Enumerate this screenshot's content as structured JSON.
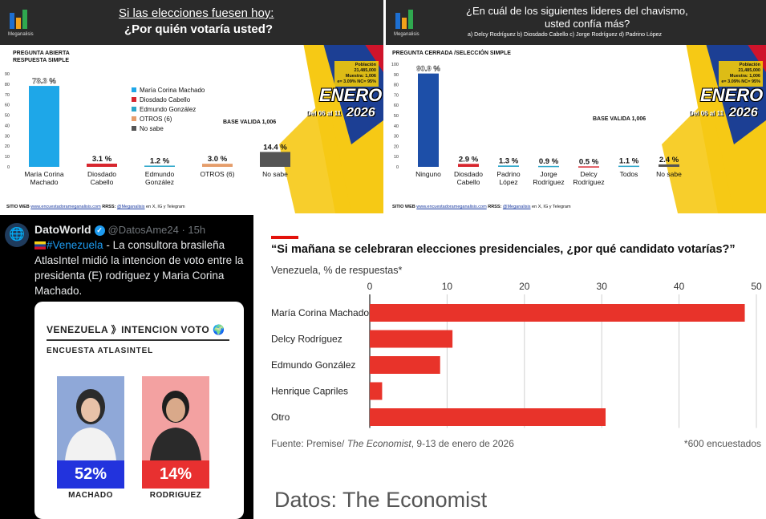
{
  "panel_a": {
    "logo_text": "Meganalisis",
    "title_line1": "Si las elecciones fuesen hoy:",
    "title_line2": "¿Por quién votaría usted?",
    "qtype_line1": "PREGUNTA ABIERTA",
    "qtype_line2": "RESPUESTA SIMPLE",
    "base_text": "BASE VALIDA 1,006",
    "info_lines": [
      "Población",
      "21,485,000",
      "Muestra: 1,006",
      "e= 3.09%  NC= 95%"
    ],
    "enero": "ENERO",
    "range": "Del 06 al 11",
    "year": "2026",
    "footer_site_label": "SITIO WEB",
    "footer_site": "www.encuestadorameganalisis.com",
    "footer_rrss_label": "RRSS:",
    "footer_rrss": "@Meganalisis",
    "footer_rrss_tail": "en X, IG y Telegram"
  },
  "panel_b": {
    "logo_text": "Meganalisis",
    "title_line1": "¿En cuál de los siguientes lideres del chavismo,",
    "title_line2": "usted confía más?",
    "title_sub": "a) Delcy Rodríguez  b) Diosdado Cabello c) Jorge Rodríguez d) Padrino López",
    "qtype_line1": "PREGUNTA CERRADA /SELECCIÓN SIMPLE",
    "base_text": "BASE VALIDA 1,006",
    "info_lines": [
      "Población",
      "21,485,000",
      "Muestra: 1,006",
      "e= 3.09%  NC= 95%"
    ],
    "enero": "ENERO",
    "range": "Del 06 al 11",
    "year": "2026",
    "footer_site_label": "SITIO WEB",
    "footer_site": "www.encuestadorameganalisis.com",
    "footer_rrss_label": "RRSS:",
    "footer_rrss": "@Meganalisis",
    "footer_rrss_tail": "en X, IG y Telegram"
  },
  "tweet": {
    "name": "DatoWorld",
    "verified_glyph": "✓",
    "handle": "@DatosAme24 · 15h",
    "hashtag": "#Venezuela",
    "body": " - La consultora brasileña AtlasIntel midió la intencion de voto entre la presidenta (E) rodriguez y Maria Corina Machado.",
    "card": {
      "title": "VENEZUELA 》INTENCION VOTO 🌍",
      "subtitle": "ENCUESTA ATLASINTEL",
      "candidates": [
        {
          "pct": "52%",
          "name": "MACHADO"
        },
        {
          "pct": "14%",
          "name": "RODRIGUEZ"
        }
      ]
    }
  },
  "economist": {
    "title": "“Si mañana se celebraran elecciones presidenciales, ¿por qué candidato votarías?”",
    "subtitle": "Venezuela, % de respuestas*",
    "source_prefix": "Fuente: Premise/ ",
    "source_pub": "The Economist",
    "source_suffix": ", 9-13 de enero de 2026",
    "note": "*600 encuestados",
    "credit": "Datos: The Economist"
  },
  "chart_data": [
    {
      "type": "bar",
      "categories": [
        "María Corina\nMachado",
        "Diosdado\nCabello",
        "Edmundo\nGonzález",
        "OTROS (6)",
        "No sabe"
      ],
      "values": [
        78.3,
        3.1,
        1.2,
        3.0,
        14.4
      ],
      "data_labels": [
        "78.3 %",
        "3.1 %",
        "1.2 %",
        "3.0 %",
        "14.4 %"
      ],
      "colors": [
        "#1ea7e8",
        "#d7262e",
        "#2ba5c9",
        "#e59d6b",
        "#555555"
      ],
      "legend": [
        "María Corina Machado",
        "Diosdado Cabello",
        "Edmundo González",
        "OTROS (6)",
        "No sabe"
      ],
      "ylim": [
        0,
        90
      ],
      "yticks": [
        0,
        10,
        20,
        30,
        40,
        50,
        60,
        70,
        80,
        90
      ],
      "legend_position": "right"
    },
    {
      "type": "bar",
      "categories": [
        "Ninguno",
        "Diosdado\nCabello",
        "Padrino\nLópez",
        "Jorge\nRodríguez",
        "Delcy\nRodríguez",
        "Todos",
        "No sabe"
      ],
      "values": [
        90.9,
        2.9,
        1.3,
        0.9,
        0.5,
        1.1,
        2.4
      ],
      "data_labels": [
        "90.9 %",
        "2.9 %",
        "1.3 %",
        "0.9 %",
        "0.5 %",
        "1.1 %",
        "2.4 %"
      ],
      "colors": [
        "#1d4fa8",
        "#d7262e",
        "#2ba5c9",
        "#2ba5c9",
        "#d7262e",
        "#2ba5c9",
        "#555555"
      ],
      "ylim": [
        0,
        100
      ],
      "yticks": [
        0,
        10,
        20,
        30,
        40,
        50,
        60,
        70,
        80,
        90,
        100
      ]
    },
    {
      "type": "bar",
      "orientation": "horizontal",
      "categories": [
        "María Corina Machado",
        "Delcy Rodríguez",
        "Edmundo González",
        "Henrique Capriles",
        "Otro"
      ],
      "values": [
        48.5,
        10.7,
        9.1,
        1.6,
        30.5
      ],
      "xlim": [
        0,
        50
      ],
      "xticks": [
        0,
        10,
        20,
        30,
        40,
        50
      ],
      "color": "#e8332a",
      "grid": true
    }
  ]
}
